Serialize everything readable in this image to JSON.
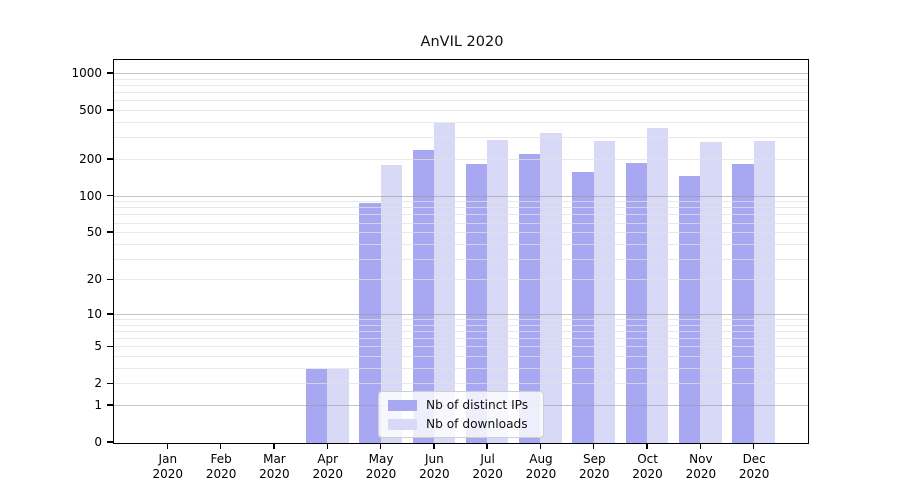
{
  "title": "AnVIL 2020",
  "colors": {
    "ips_bar": "#a8a8f2",
    "downloads_bar": "#d8d8f7",
    "axis": "#000000",
    "grid_major": "#cbcbcb",
    "grid_minor": "#e9e9e9",
    "legend_border": "#cfcfcf"
  },
  "legend": {
    "items": [
      {
        "label": "Nb of distinct IPs"
      },
      {
        "label": "Nb of downloads"
      }
    ]
  },
  "chart_data": {
    "type": "bar",
    "title": "AnVIL 2020",
    "categories": [
      "Jan 2020",
      "Feb 2020",
      "Mar 2020",
      "Apr 2020",
      "May 2020",
      "Jun 2020",
      "Jul 2020",
      "Aug 2020",
      "Sep 2020",
      "Oct 2020",
      "Nov 2020",
      "Dec 2020"
    ],
    "series": [
      {
        "name": "Nb of distinct IPs",
        "color": "#a8a8f2",
        "values": [
          0,
          0,
          0,
          3,
          88,
          240,
          186,
          225,
          160,
          190,
          148,
          186
        ]
      },
      {
        "name": "Nb of downloads",
        "color": "#d8d8f7",
        "values": [
          0,
          0,
          0,
          3,
          182,
          400,
          291,
          334,
          287,
          361,
          279,
          284
        ]
      }
    ],
    "xlabel": "",
    "ylabel": "",
    "y_scale": "log1p (symlog-like: position ∝ log10(1+v))",
    "y_ticks": [
      0,
      1,
      2,
      5,
      10,
      20,
      50,
      100,
      200,
      500,
      1000
    ],
    "y_minor_ticks": [
      2,
      3,
      4,
      5,
      6,
      7,
      8,
      9,
      20,
      30,
      40,
      50,
      60,
      70,
      80,
      90,
      200,
      300,
      400,
      500,
      600,
      700,
      800,
      900
    ],
    "ylim": [
      0,
      1280
    ],
    "grid": true,
    "grid_on_top": true,
    "legend_position": "inside lower-center",
    "bar_width_fraction": 0.4
  }
}
